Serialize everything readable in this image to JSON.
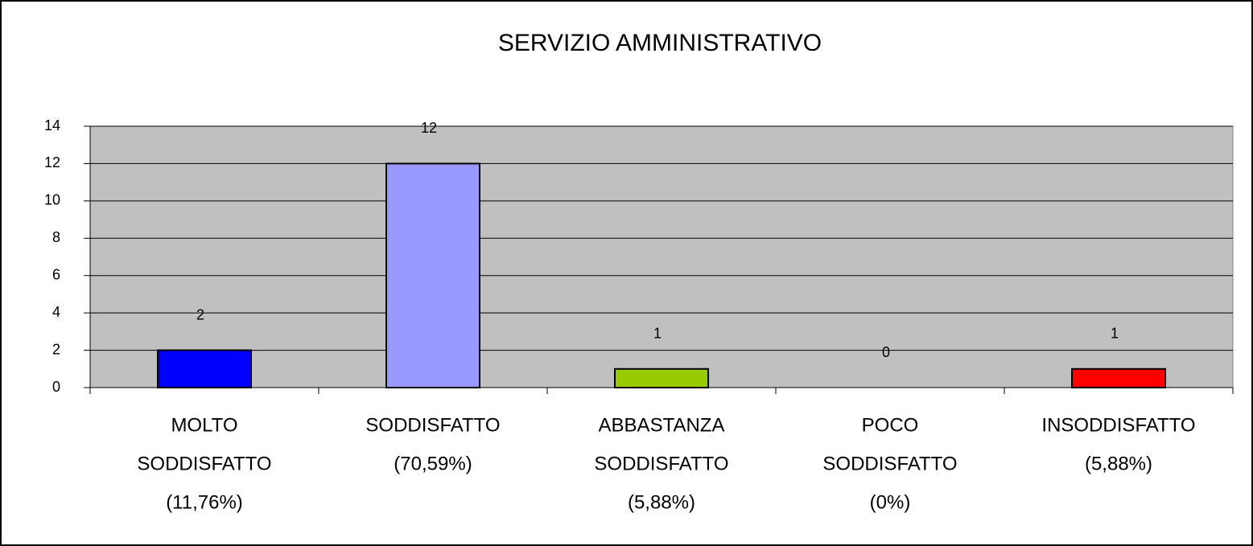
{
  "chart_data": {
    "type": "bar",
    "title": "SERVIZIO AMMINISTRATIVO",
    "categories": [
      [
        "MOLTO",
        "SODDISFATTO",
        "(11,76%)"
      ],
      [
        "SODDISFATTO",
        "(70,59%)"
      ],
      [
        "ABBASTANZA",
        "SODDISFATTO",
        "(5,88%)"
      ],
      [
        "POCO",
        "SODDISFATTO",
        "(0%)"
      ],
      [
        "INSODDISFATTO",
        "(5,88%)"
      ]
    ],
    "values": [
      2,
      12,
      1,
      0,
      1
    ],
    "colors": [
      "#0000ff",
      "#9999ff",
      "#99cc00",
      "#ff9900",
      "#ff0000"
    ],
    "ylim": [
      0,
      14
    ],
    "yticks": [
      0,
      2,
      4,
      6,
      8,
      10,
      12,
      14
    ],
    "grid": true
  }
}
